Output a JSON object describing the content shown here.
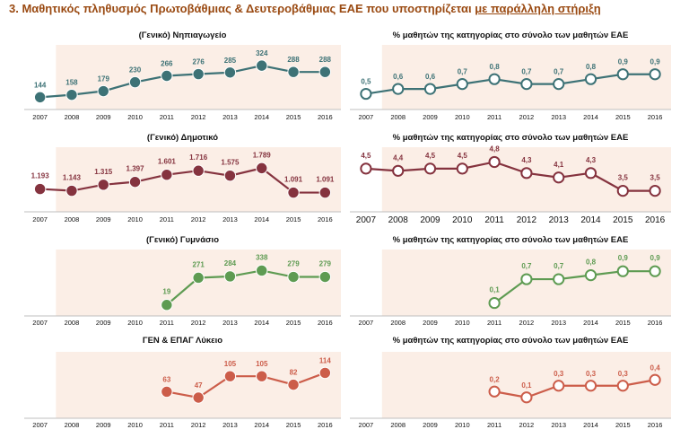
{
  "title": {
    "main": "3.  Μαθητικός πληθυσμός Πρωτοβάθμιας & Δευτεροβάθμιας ΕΑΕ που υποστηρίζεται ",
    "underlined": "με παράλληλη στήριξη"
  },
  "colors": {
    "teal": "#3d7276",
    "maroon": "#85333f",
    "green": "#5e9b52",
    "coral": "#cc5d4a",
    "shade": "#fbeee6",
    "title": "#9a4a12"
  },
  "chart_data": [
    {
      "id": "nip-count",
      "type": "line",
      "style": "filled",
      "color": "#3d7276",
      "title": "(Γενικό) Νηπιαγωγείο",
      "ylabel": "",
      "ylim": [
        100,
        340
      ],
      "x": [
        "2007",
        "2008",
        "2009",
        "2010",
        "2011",
        "2012",
        "2013",
        "2014",
        "2015",
        "2016"
      ],
      "values": [
        144,
        158,
        179,
        230,
        266,
        276,
        285,
        324,
        288,
        288
      ],
      "labels": [
        "144",
        "158",
        "179",
        "230",
        "266",
        "276",
        "285",
        "324",
        "288",
        "288"
      ]
    },
    {
      "id": "nip-pct",
      "type": "line",
      "style": "hollow",
      "color": "#3d7276",
      "title": "% μαθητών της κατηγορίας στο σύνολο των μαθητών ΕΑΕ",
      "ylabel": "",
      "ylim": [
        0.4,
        0.95
      ],
      "x": [
        "2007",
        "2008",
        "2009",
        "2010",
        "2011",
        "2012",
        "2013",
        "2014",
        "2015",
        "2016"
      ],
      "values": [
        0.5,
        0.6,
        0.6,
        0.7,
        0.8,
        0.7,
        0.7,
        0.8,
        0.9,
        0.9
      ],
      "labels": [
        "0,5",
        "0,6",
        "0,6",
        "0,7",
        "0,8",
        "0,7",
        "0,7",
        "0,8",
        "0,9",
        "0,9"
      ]
    },
    {
      "id": "dim-count",
      "type": "line",
      "style": "filled",
      "color": "#85333f",
      "title": "(Γενικό) Δημοτικό",
      "ylabel": "",
      "ylim": [
        900,
        1850
      ],
      "x": [
        "2007",
        "2008",
        "2009",
        "2010",
        "2011",
        "2012",
        "2013",
        "2014",
        "2015",
        "2016"
      ],
      "values": [
        1193,
        1143,
        1315,
        1397,
        1601,
        1716,
        1575,
        1789,
        1091,
        1091
      ],
      "labels": [
        "1.193",
        "1.143",
        "1.315",
        "1.397",
        "1.601",
        "1.716",
        "1.575",
        "1.789",
        "1.091",
        "1.091"
      ]
    },
    {
      "id": "dim-pct",
      "type": "line",
      "style": "hollow",
      "color": "#85333f",
      "title": "% μαθητών της κατηγορίας στο σύνολο των μαθητών ΕΑΕ",
      "ylabel": "",
      "ylim": [
        3.2,
        4.9
      ],
      "x": [
        "2007",
        "2008",
        "2009",
        "2010",
        "2011",
        "2012",
        "2013",
        "2014",
        "2015",
        "2016"
      ],
      "values": [
        4.5,
        4.4,
        4.5,
        4.5,
        4.8,
        4.3,
        4.1,
        4.3,
        3.5,
        3.5
      ],
      "labels": [
        "4,5",
        "4,4",
        "4,5",
        "4,5",
        "4,8",
        "4,3",
        "4,1",
        "4,3",
        "3,5",
        "3,5"
      ]
    },
    {
      "id": "gym-count",
      "type": "line",
      "style": "filled",
      "color": "#5e9b52",
      "title": "(Γενικό) Γυμνάσιο",
      "ylabel": "",
      "ylim": [
        0,
        350
      ],
      "x": [
        "2007",
        "2008",
        "2009",
        "2010",
        "2011",
        "2012",
        "2013",
        "2014",
        "2015",
        "2016"
      ],
      "values": [
        null,
        null,
        null,
        null,
        19,
        271,
        284,
        338,
        279,
        279
      ],
      "labels": [
        "",
        "",
        "",
        "",
        "19",
        "271",
        "284",
        "338",
        "279",
        "279"
      ]
    },
    {
      "id": "gym-pct",
      "type": "line",
      "style": "hollow",
      "color": "#5e9b52",
      "title": "% μαθητών της κατηγορίας στο σύνολο των μαθητών ΕΑΕ",
      "ylabel": "",
      "ylim": [
        0,
        0.95
      ],
      "x": [
        "2007",
        "2008",
        "2009",
        "2010",
        "2011",
        "2012",
        "2013",
        "2014",
        "2015",
        "2016"
      ],
      "values": [
        null,
        null,
        null,
        null,
        0.1,
        0.7,
        0.7,
        0.8,
        0.9,
        0.9
      ],
      "labels": [
        "",
        "",
        "",
        "",
        "0,1",
        "0,7",
        "0,7",
        "0,8",
        "0,9",
        "0,9"
      ]
    },
    {
      "id": "lyk-count",
      "type": "line",
      "style": "filled",
      "color": "#cc5d4a",
      "title": "ΓΕΝ & ΕΠΑΓ Λύκειο",
      "ylabel": "",
      "ylim": [
        30,
        120
      ],
      "x": [
        "2007",
        "2008",
        "2009",
        "2010",
        "2011",
        "2012",
        "2013",
        "2014",
        "2015",
        "2016"
      ],
      "values": [
        null,
        null,
        null,
        null,
        63,
        47,
        105,
        105,
        82,
        114
      ],
      "labels": [
        "",
        "",
        "",
        "",
        "63",
        "47",
        "105",
        "105",
        "82",
        "114"
      ]
    },
    {
      "id": "lyk-pct",
      "type": "line",
      "style": "hollow",
      "color": "#cc5d4a",
      "title": "% μαθητών της κατηγορίας στο σύνολο των μαθητών ΕΑΕ",
      "ylabel": "",
      "ylim": [
        0.05,
        0.45
      ],
      "x": [
        "2007",
        "2008",
        "2009",
        "2010",
        "2011",
        "2012",
        "2013",
        "2014",
        "2015",
        "2016"
      ],
      "values": [
        null,
        null,
        null,
        null,
        0.2,
        0.1,
        0.3,
        0.3,
        0.3,
        0.4
      ],
      "labels": [
        "",
        "",
        "",
        "",
        "0,2",
        "0,1",
        "0,3",
        "0,3",
        "0,3",
        "0,4"
      ]
    }
  ]
}
